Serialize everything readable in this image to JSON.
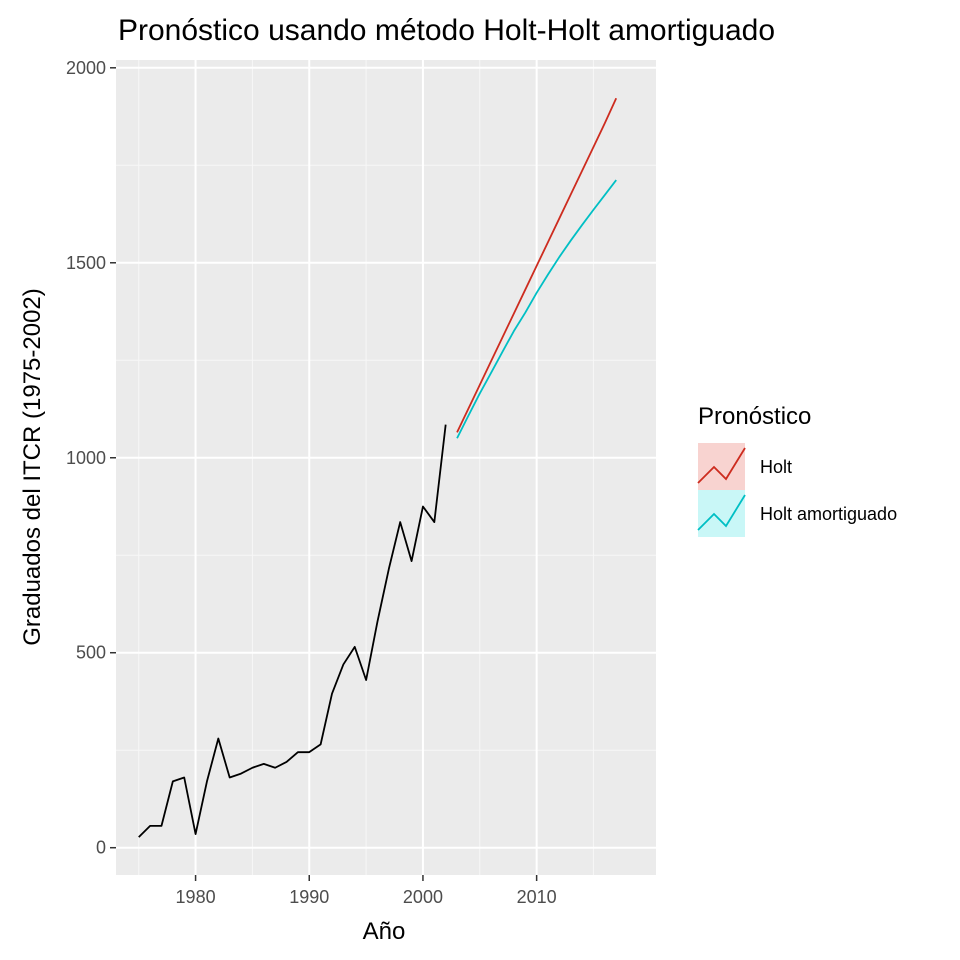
{
  "chart_data": {
    "type": "line",
    "title": "Pronóstico usando método Holt-Holt amortiguado",
    "xlabel": "Año",
    "ylabel": "Graduados del ITCR (1975-2002)",
    "xlim": [
      1973,
      2020.5
    ],
    "ylim": [
      -70,
      2020
    ],
    "x_ticks": [
      1980,
      1990,
      2000,
      2010
    ],
    "x_tick_labels": [
      "1980",
      "1990",
      "2000",
      "2010"
    ],
    "y_ticks": [
      0,
      500,
      1000,
      1500,
      2000
    ],
    "y_tick_labels": [
      "0",
      "500",
      "1000",
      "1500",
      "2000"
    ],
    "grid": true,
    "legend_position": "right",
    "legend_title": "Pronóstico",
    "series": [
      {
        "color": "#000000",
        "x": [
          1975,
          1976,
          1977,
          1978,
          1979,
          1980,
          1981,
          1982,
          1983,
          1984,
          1985,
          1986,
          1987,
          1988,
          1989,
          1990,
          1991,
          1992,
          1993,
          1994,
          1995,
          1996,
          1997,
          1998,
          1999,
          2000,
          2001,
          2002
        ],
        "y": [
          27,
          56,
          56,
          170,
          180,
          35,
          170,
          280,
          180,
          190,
          205,
          215,
          205,
          220,
          245,
          245,
          265,
          395,
          470,
          515,
          430,
          580,
          715,
          835,
          735,
          875,
          835,
          1085
        ]
      },
      {
        "name": "Holt",
        "color": "#f8766d",
        "line_color": "#cd2c1f",
        "fill": "#f8d3d0",
        "x": [
          2003,
          2004,
          2005,
          2006,
          2007,
          2008,
          2009,
          2010,
          2011,
          2012,
          2013,
          2014,
          2015,
          2016,
          2017
        ],
        "y": [
          1065,
          1126,
          1187,
          1248,
          1309,
          1370,
          1431,
          1492,
          1553,
          1614,
          1675,
          1736,
          1797,
          1858,
          1922
        ]
      },
      {
        "name": "Holt amortiguado",
        "color": "#00bfc4",
        "line_color": "#00bfc4",
        "fill": "#c9f7f7",
        "x": [
          2003,
          2004,
          2005,
          2006,
          2007,
          2008,
          2009,
          2010,
          2011,
          2012,
          2013,
          2014,
          2015,
          2016,
          2017
        ],
        "y": [
          1050,
          1108,
          1165,
          1218,
          1272,
          1325,
          1372,
          1423,
          1470,
          1515,
          1557,
          1597,
          1636,
          1674,
          1712
        ]
      }
    ]
  }
}
